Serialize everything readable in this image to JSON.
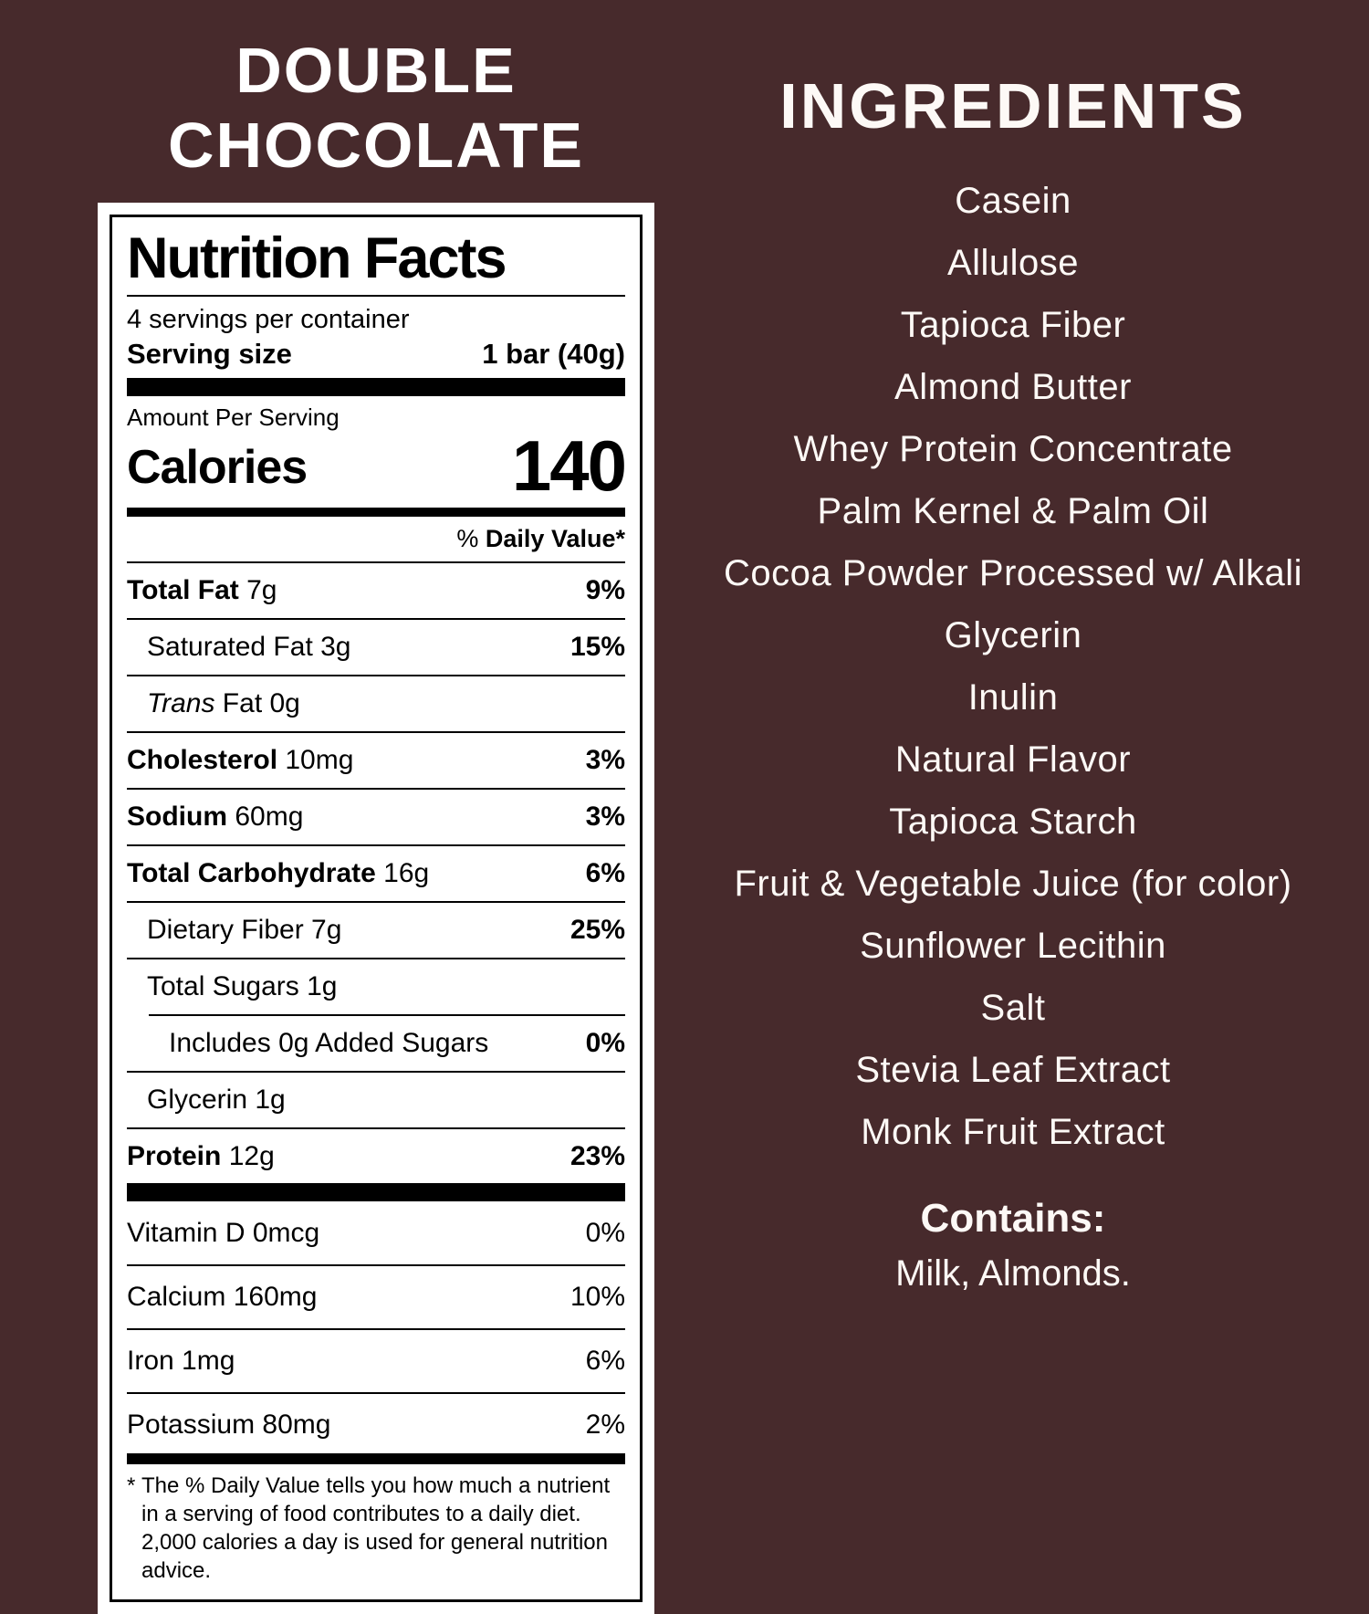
{
  "colors": {
    "background": "#472a2c",
    "panel": "#ffffff",
    "panel_text": "#000000",
    "light_text": "#fdf9f6"
  },
  "left": {
    "title_line1": "DOUBLE",
    "title_line2": "CHOCOLATE"
  },
  "nutrition": {
    "title": "Nutrition Facts",
    "servings_per_container": "4 servings per container",
    "serving_size_label": "Serving size",
    "serving_size_value": "1 bar (40g)",
    "amount_per_serving": "Amount Per Serving",
    "calories_label": "Calories",
    "calories_value": "140",
    "daily_value_percent": "%",
    "daily_value_text": "Daily Value*",
    "main_rows": [
      {
        "label": "Total Fat",
        "amount": "7g",
        "dv": "9%",
        "bold": true,
        "indent": 0
      },
      {
        "label": "Saturated Fat",
        "amount": "3g",
        "dv": "15%",
        "bold": false,
        "indent": 1
      },
      {
        "label": "Trans Fat",
        "amount": "0g",
        "dv": "",
        "bold": false,
        "indent": 1,
        "italic_first_word": true
      },
      {
        "label": "Cholesterol",
        "amount": "10mg",
        "dv": "3%",
        "bold": true,
        "indent": 0
      },
      {
        "label": "Sodium",
        "amount": "60mg",
        "dv": "3%",
        "bold": true,
        "indent": 0
      },
      {
        "label": "Total Carbohydrate",
        "amount": "16g",
        "dv": "6%",
        "bold": true,
        "indent": 0
      },
      {
        "label": "Dietary Fiber",
        "amount": "7g",
        "dv": "25%",
        "bold": false,
        "indent": 1
      },
      {
        "label": "Total Sugars",
        "amount": "1g",
        "dv": "",
        "bold": false,
        "indent": 1
      },
      {
        "label": "Includes 0g Added Sugars",
        "amount": "",
        "dv": "0%",
        "bold": false,
        "indent": 2,
        "inset_rule": true
      },
      {
        "label": "Glycerin",
        "amount": "1g",
        "dv": "",
        "bold": false,
        "indent": 1
      },
      {
        "label": "Protein",
        "amount": "12g",
        "dv": "23%",
        "bold": true,
        "indent": 0
      }
    ],
    "vitamin_rows": [
      {
        "label": "Vitamin D",
        "amount": "0mcg",
        "dv": "0%"
      },
      {
        "label": "Calcium",
        "amount": "160mg",
        "dv": "10%"
      },
      {
        "label": "Iron",
        "amount": "1mg",
        "dv": "6%"
      },
      {
        "label": "Potassium",
        "amount": "80mg",
        "dv": "2%"
      }
    ],
    "footnote_star": "*",
    "footnote": "The % Daily Value tells you how much a nutrient in a serving of food contributes to a daily diet. 2,000 calories a day is used for general nutrition advice."
  },
  "ingredients": {
    "title": "INGREDIENTS",
    "items": [
      "Casein",
      "Allulose",
      "Tapioca Fiber",
      "Almond Butter",
      "Whey Protein Concentrate",
      "Palm Kernel & Palm Oil",
      "Cocoa Powder Processed w/ Alkali",
      "Glycerin",
      "Inulin",
      "Natural Flavor",
      "Tapioca Starch",
      "Fruit & Vegetable Juice (for color)",
      "Sunflower Lecithin",
      "Salt",
      "Stevia Leaf Extract",
      "Monk Fruit Extract"
    ],
    "contains_label": "Contains:",
    "contains_value": "Milk, Almonds."
  }
}
